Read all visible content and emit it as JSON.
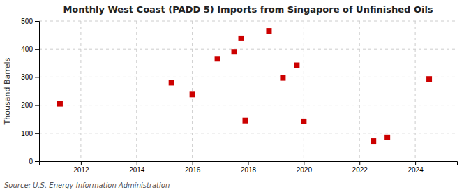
{
  "chart_data": {
    "type": "scatter",
    "title": "Monthly West Coast (PADD 5) Imports from Singapore of Unfinished Oils",
    "ylabel": "Thousand Barrels",
    "annotations": [
      "Source: U.S. Energy Information Administration"
    ],
    "x": [
      2011.25,
      2015.25,
      2016.0,
      2016.9,
      2017.5,
      2017.75,
      2017.9,
      2018.75,
      2019.25,
      2019.75,
      2020.0,
      2022.5,
      2023.0,
      2024.5
    ],
    "values": [
      205,
      280,
      238,
      365,
      390,
      438,
      145,
      465,
      297,
      342,
      142,
      72,
      85,
      293
    ],
    "color": "#cc0000",
    "marker": "square",
    "xlim": [
      2010.5,
      2025.5
    ],
    "xticks": [
      2012,
      2014,
      2016,
      2018,
      2020,
      2022,
      2024
    ],
    "ylim": [
      0,
      500
    ],
    "yticks": [
      0,
      100,
      200,
      300,
      400,
      500
    ],
    "grid": true
  }
}
